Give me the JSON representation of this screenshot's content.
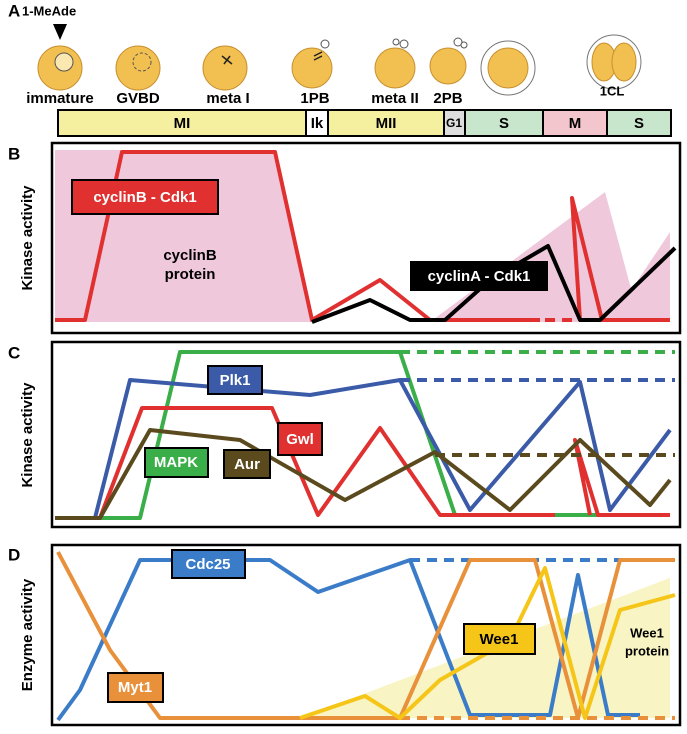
{
  "panel_a": {
    "letter": "A",
    "stimulus": "1-MeAde",
    "stages": [
      "immature",
      "GVBD",
      "meta I",
      "1PB",
      "meta II",
      "2PB",
      "1CL"
    ],
    "phases": [
      "MI",
      "Ik",
      "MII",
      "G1",
      "S",
      "M",
      "S"
    ]
  },
  "panel_b": {
    "letter": "B",
    "y_label": "Kinase activity",
    "labels": [
      "cyclinB - Cdk1",
      "cyclinB",
      "protein",
      "cyclinA - Cdk1"
    ]
  },
  "panel_c": {
    "letter": "C",
    "y_label": "Kinase activity",
    "labels": [
      "Plk1",
      "Gwl",
      "MAPK",
      "Aur"
    ]
  },
  "panel_d": {
    "letter": "D",
    "y_label": "Enzyme activity",
    "labels": [
      "Cdc25",
      "Myt1",
      "Wee1",
      "Wee1",
      "protein"
    ]
  }
}
